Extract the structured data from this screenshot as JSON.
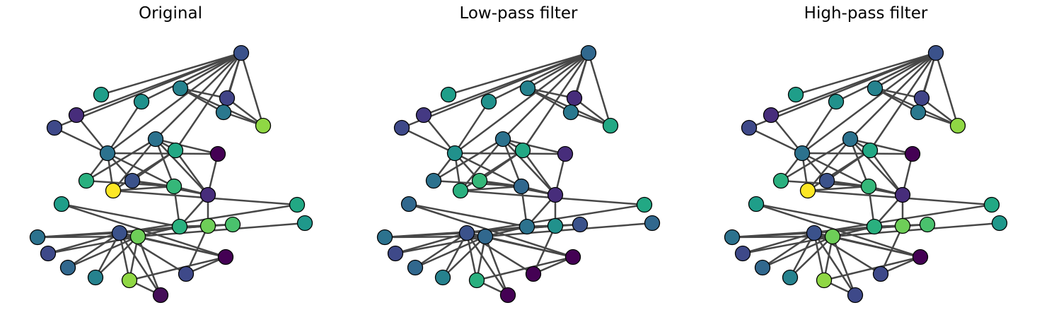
{
  "panels": [
    {
      "title": "Original"
    },
    {
      "title": "Low-pass filter"
    },
    {
      "title": "High-pass filter"
    }
  ],
  "graph": {
    "nodes": [
      "n0",
      "n1",
      "n2",
      "n3",
      "n4",
      "n5",
      "n6",
      "n7",
      "n8",
      "n9",
      "n10",
      "n11",
      "n12",
      "n13",
      "n14",
      "n15",
      "n16",
      "n17",
      "n18",
      "n19",
      "n20",
      "n21",
      "n22",
      "n23",
      "n24",
      "n25",
      "n26",
      "n27",
      "n28",
      "n29",
      "n30",
      "n31",
      "n32",
      "n33"
    ],
    "edges": [
      [
        1,
        2
      ],
      [
        1,
        3
      ],
      [
        1,
        4
      ],
      [
        2,
        3
      ],
      [
        2,
        4
      ],
      [
        3,
        4
      ],
      [
        0,
        1
      ],
      [
        0,
        2
      ],
      [
        0,
        3
      ],
      [
        0,
        4
      ],
      [
        0,
        5
      ],
      [
        0,
        6
      ],
      [
        0,
        7
      ],
      [
        0,
        8
      ],
      [
        0,
        9
      ],
      [
        0,
        10
      ],
      [
        0,
        11
      ],
      [
        5,
        11
      ],
      [
        7,
        11
      ],
      [
        8,
        11
      ],
      [
        9,
        12
      ],
      [
        9,
        13
      ],
      [
        9,
        15
      ],
      [
        9,
        16
      ],
      [
        9,
        17
      ],
      [
        9,
        10
      ],
      [
        10,
        15
      ],
      [
        10,
        14
      ],
      [
        10,
        17
      ],
      [
        11,
        12
      ],
      [
        11,
        13
      ],
      [
        11,
        14
      ],
      [
        11,
        15
      ],
      [
        11,
        16
      ],
      [
        13,
        16
      ],
      [
        14,
        16
      ],
      [
        14,
        17
      ],
      [
        12,
        17
      ],
      [
        15,
        22
      ],
      [
        15,
        16
      ],
      [
        16,
        17
      ],
      [
        16,
        18
      ],
      [
        17,
        18
      ],
      [
        17,
        20
      ],
      [
        18,
        20
      ],
      [
        18,
        19
      ],
      [
        18,
        21
      ],
      [
        18,
        25
      ],
      [
        18,
        24
      ],
      [
        20,
        24
      ],
      [
        21,
        28
      ],
      [
        22,
        24
      ],
      [
        23,
        25
      ],
      [
        24,
        25
      ],
      [
        24,
        26
      ],
      [
        24,
        27
      ],
      [
        24,
        28
      ],
      [
        24,
        29
      ],
      [
        24,
        30
      ],
      [
        24,
        31
      ],
      [
        24,
        32
      ],
      [
        24,
        33
      ],
      [
        25,
        28
      ],
      [
        25,
        29
      ],
      [
        25,
        30
      ],
      [
        25,
        31
      ],
      [
        25,
        32
      ],
      [
        25,
        33
      ],
      [
        25,
        26
      ],
      [
        19,
        26
      ],
      [
        20,
        27
      ],
      [
        26,
        27
      ],
      [
        33,
        32
      ],
      [
        26,
        32
      ]
    ]
  },
  "signals": [
    {
      "node_colors": [
        "#3b528b",
        "#414487",
        "#26828e",
        "#2a788e",
        "#8fd744",
        "#21918c",
        "#1f9e89",
        "#472d7b",
        "#3e4989",
        "#2c728e",
        "#22a884",
        "#2c728e",
        "#440154",
        "#2ab07f",
        "#3b528b",
        "#fde725",
        "#35b779",
        "#472d7b",
        "#2ab07f",
        "#1f9e89",
        "#6ece58",
        "#4ac16d",
        "#22a884",
        "#1f988b",
        "#3b528b",
        "#6ece58",
        "#440154",
        "#3e4989",
        "#2c728e",
        "#3e4989",
        "#31688e",
        "#26828e",
        "#8fd744",
        "#440e57"
      ]
    },
    {
      "node_colors": [
        "#31688e",
        "#472d7b",
        "#26828e",
        "#2a788e",
        "#22a884",
        "#21918c",
        "#1f9e89",
        "#443983",
        "#3e4989",
        "#2c728e",
        "#22a884",
        "#21918c",
        "#472d7b",
        "#2c728e",
        "#35b779",
        "#2ab07f",
        "#31688e",
        "#472d7b",
        "#2c728e",
        "#31688e",
        "#21918c",
        "#3b528b",
        "#22a884",
        "#31688e",
        "#3b528b",
        "#31688e",
        "#440154",
        "#440154",
        "#2c728e",
        "#3e4989",
        "#31688e",
        "#26828e",
        "#2ab07f",
        "#440154"
      ]
    },
    {
      "node_colors": [
        "#3b528b",
        "#414487",
        "#26828e",
        "#2a788e",
        "#8fd744",
        "#21918c",
        "#1f9e89",
        "#472d7b",
        "#3e4989",
        "#2c728e",
        "#22a884",
        "#2c728e",
        "#440154",
        "#2ab07f",
        "#3b528b",
        "#fde725",
        "#35b779",
        "#472d7b",
        "#2ab07f",
        "#1f9e89",
        "#6ece58",
        "#4ac16d",
        "#22a884",
        "#1f988b",
        "#3b528b",
        "#6ece58",
        "#440154",
        "#3e4989",
        "#2c728e",
        "#3e4989",
        "#31688e",
        "#26828e",
        "#8fd744",
        "#3e4989"
      ]
    }
  ]
}
